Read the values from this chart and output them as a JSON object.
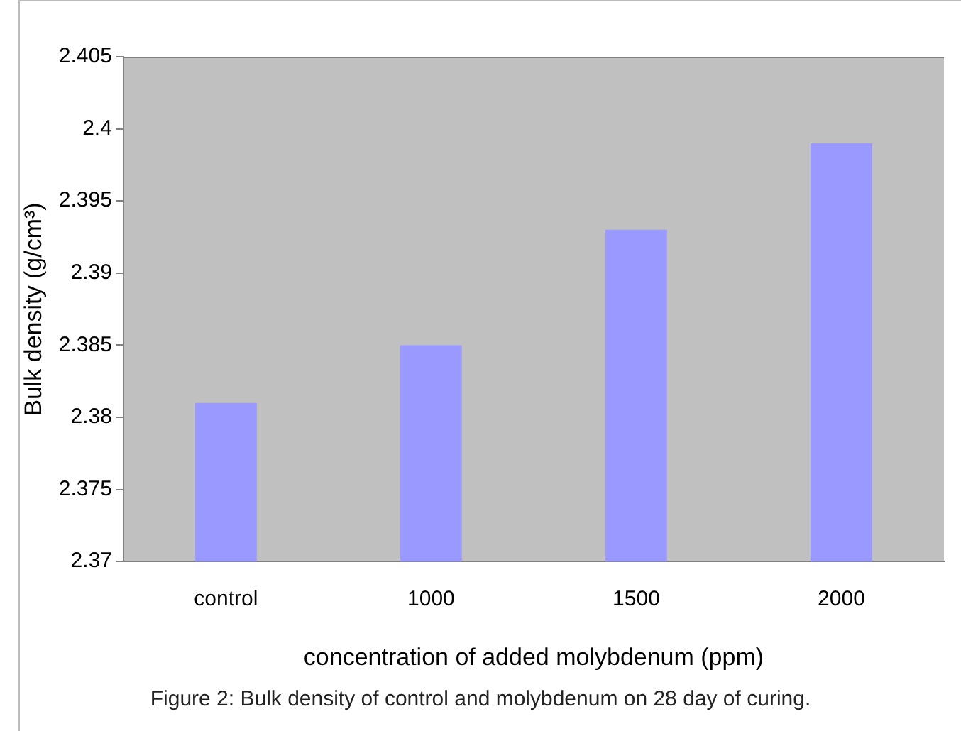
{
  "chart_data": {
    "type": "bar",
    "categories": [
      "control",
      "1000",
      "1500",
      "2000"
    ],
    "values": [
      2.381,
      2.385,
      2.393,
      2.399
    ],
    "color": "#9999ff",
    "ylim": [
      2.37,
      2.405
    ],
    "yticks": [
      2.37,
      2.375,
      2.38,
      2.385,
      2.39,
      2.395,
      2.4,
      2.405
    ],
    "ylabel": "Bulk density (g/cm³)",
    "xlabel": "concentration of added molybdenum (ppm)",
    "annotations": [
      "Figure 2: Bulk density of control and molybdenum on 28 day of curing."
    ],
    "grid": false,
    "legend": false
  }
}
